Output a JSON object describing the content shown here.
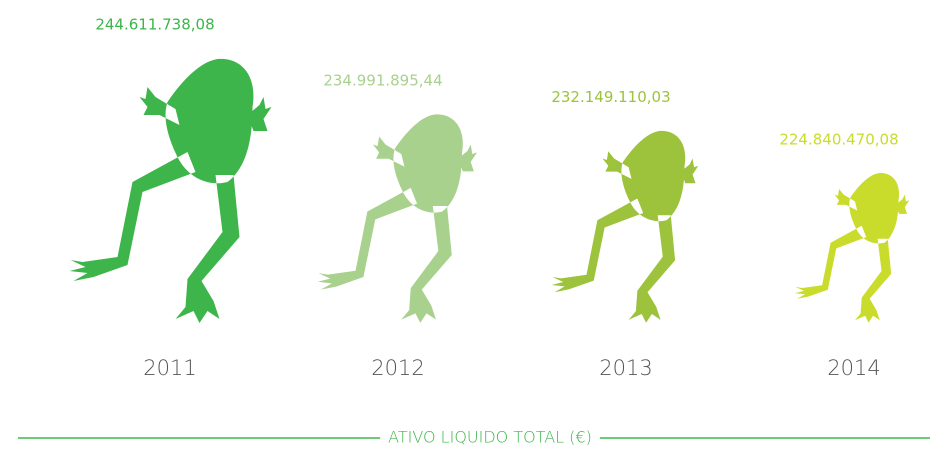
{
  "chart_data": {
    "type": "pictograph",
    "title": "ATIVO LIQUIDO TOTAL (€)",
    "categories": [
      "2011",
      "2012",
      "2013",
      "2014"
    ],
    "values": [
      244611738.08,
      234991895.44,
      232149110.03,
      224840470.08
    ],
    "value_labels": [
      "244.611.738,08",
      "234.991.895,44",
      "232.149.110,03",
      "224.840.470,08"
    ],
    "colors": [
      "#3db54a",
      "#a9d18e",
      "#9cc33b",
      "#c9dc2c"
    ]
  }
}
